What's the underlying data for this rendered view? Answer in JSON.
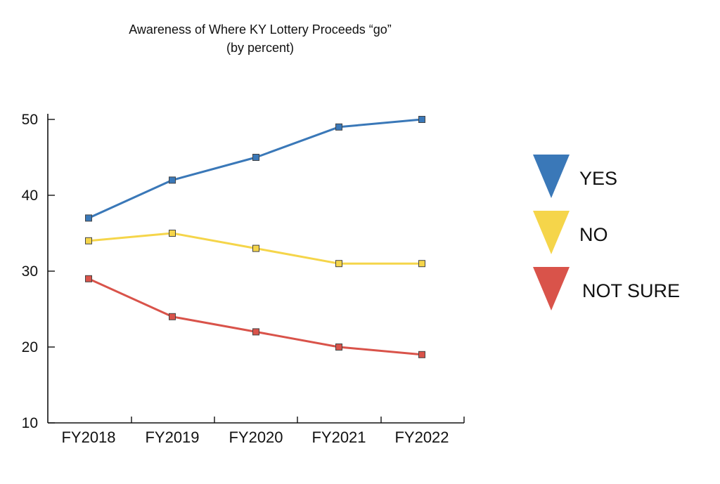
{
  "chart_data": {
    "type": "line",
    "title": "Awareness of Where KY Lottery Proceeds “go”",
    "subtitle": "(by percent)",
    "xlabel": "",
    "ylabel": "",
    "categories": [
      "FY2018",
      "FY2019",
      "FY2020",
      "FY2021",
      "FY2022"
    ],
    "yticks": [
      "10",
      "20",
      "30",
      "40",
      "50"
    ],
    "ylim": [
      10,
      50
    ],
    "grid": false,
    "legend_position": "right",
    "series": [
      {
        "name": "YES",
        "color": "#3a78b8",
        "values": [
          37,
          42,
          45,
          49,
          50
        ]
      },
      {
        "name": "NO",
        "color": "#f5d54a",
        "values": [
          34,
          35,
          33,
          31,
          31
        ]
      },
      {
        "name": "NOT SURE",
        "color": "#d9534a",
        "values": [
          29,
          24,
          22,
          20,
          19
        ]
      }
    ]
  }
}
